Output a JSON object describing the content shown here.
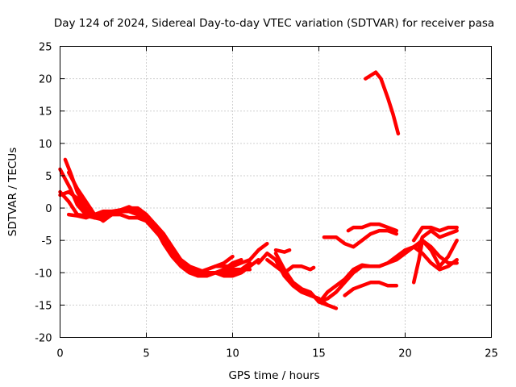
{
  "chart_data": {
    "type": "line",
    "title": "Day 124 of 2024, Sidereal Day-to-day VTEC variation (SDTVAR) for receiver pasa",
    "xlabel": "GPS time / hours",
    "ylabel": "SDTVAR / TECUs",
    "xlim": [
      0,
      25
    ],
    "ylim": [
      -20,
      25
    ],
    "xticks": [
      "0",
      "5",
      "10",
      "15",
      "20",
      "25"
    ],
    "yticks": [
      "-20",
      "-15",
      "-10",
      "-5",
      "0",
      "5",
      "10",
      "15",
      "20",
      "25"
    ],
    "grid": true,
    "color": "#ff0000",
    "series": [
      {
        "name": "trace-1",
        "x": [
          0.0,
          0.3,
          0.6,
          1.0,
          1.5,
          2.0,
          2.5,
          3.0,
          3.5,
          4.0,
          4.5,
          5.0,
          5.5,
          6.0,
          6.5,
          7.0,
          7.5,
          8.0,
          8.5,
          9.0,
          9.5,
          10.0,
          10.5,
          11.0,
          11.5,
          12.0
        ],
        "y": [
          6.0,
          4.5,
          3.0,
          0.5,
          -1.0,
          -1.5,
          -0.8,
          -0.6,
          -0.3,
          0.2,
          -0.5,
          -1.5,
          -2.5,
          -4.5,
          -6.5,
          -8.5,
          -9.5,
          -10.0,
          -9.5,
          -9.0,
          -9.0,
          -9.0,
          -8.5,
          -8.0,
          -6.5,
          -5.5
        ]
      },
      {
        "name": "trace-2",
        "x": [
          0.3,
          0.6,
          1.0,
          1.5,
          2.0,
          2.5,
          3.0,
          3.5,
          4.0,
          4.5,
          5.0,
          5.5,
          6.0,
          6.5,
          7.0,
          7.5,
          8.0,
          8.5,
          9.0,
          9.5,
          10.0,
          10.5,
          11.0,
          11.5
        ],
        "y": [
          7.5,
          5.5,
          2.5,
          0.0,
          -1.0,
          -1.5,
          -1.0,
          -0.5,
          -0.5,
          -0.5,
          -1.5,
          -3.0,
          -5.5,
          -7.5,
          -9.0,
          -10.0,
          -10.5,
          -10.0,
          -10.0,
          -10.5,
          -10.5,
          -10.0,
          -9.0,
          -8.0
        ]
      },
      {
        "name": "trace-3",
        "x": [
          0.0,
          0.5,
          1.0,
          1.5,
          2.0,
          2.5,
          3.0,
          3.5,
          4.0,
          4.5,
          5.0,
          5.5,
          6.0,
          6.5,
          7.0,
          7.5,
          8.0,
          8.5,
          9.0,
          9.5,
          10.0
        ],
        "y": [
          2.0,
          2.5,
          1.5,
          -0.5,
          -1.5,
          -1.8,
          -1.0,
          -1.0,
          -1.5,
          -1.5,
          -2.0,
          -3.5,
          -5.0,
          -7.0,
          -8.5,
          -9.5,
          -10.0,
          -9.5,
          -9.0,
          -8.5,
          -7.5
        ]
      },
      {
        "name": "trace-4",
        "x": [
          0.0,
          0.5,
          1.0,
          1.5,
          2.0,
          2.5,
          3.0,
          3.5,
          4.0,
          4.5,
          5.0,
          5.5,
          6.0,
          6.5,
          7.0,
          7.5,
          8.0,
          8.5,
          9.0,
          9.5,
          10.0,
          10.5,
          11.0
        ],
        "y": [
          2.5,
          1.0,
          -1.0,
          -1.2,
          -1.5,
          -1.2,
          -0.8,
          -0.5,
          0.0,
          0.0,
          -1.0,
          -2.5,
          -4.0,
          -6.5,
          -8.5,
          -9.8,
          -10.5,
          -10.5,
          -10.0,
          -9.5,
          -9.5,
          -9.5,
          -8.5
        ]
      },
      {
        "name": "trace-5",
        "x": [
          0.5,
          1.0,
          1.5,
          2.0,
          2.5,
          3.0,
          3.5,
          4.0,
          4.5,
          5.0,
          5.5,
          6.0,
          6.5,
          7.0,
          7.5,
          8.0,
          8.5,
          9.0,
          9.5,
          10.0,
          10.5
        ],
        "y": [
          5.5,
          3.0,
          1.0,
          -1.0,
          -2.0,
          -1.0,
          -0.5,
          -0.5,
          -1.0,
          -2.0,
          -3.5,
          -5.0,
          -6.5,
          -8.0,
          -9.0,
          -9.5,
          -10.0,
          -10.0,
          -9.5,
          -8.5,
          -8.0
        ]
      },
      {
        "name": "trace-6",
        "x": [
          0.5,
          1.0,
          1.5,
          2.0,
          2.5,
          3.0,
          3.5,
          4.0,
          4.5,
          5.0,
          5.5,
          6.0,
          6.5,
          7.0,
          7.5,
          8.0,
          8.5,
          9.0,
          9.5,
          10.0,
          10.5,
          11.0
        ],
        "y": [
          -1.0,
          -1.2,
          -1.5,
          -1.0,
          -0.5,
          -0.5,
          -0.3,
          -0.5,
          -1.0,
          -1.5,
          -2.5,
          -4.0,
          -6.0,
          -8.0,
          -9.0,
          -10.0,
          -10.5,
          -10.0,
          -10.0,
          -10.0,
          -9.5,
          -9.5
        ]
      },
      {
        "name": "trace-7",
        "x": [
          11.5,
          12.0,
          12.5,
          13.0,
          13.5,
          14.0,
          14.5,
          15.0,
          15.5
        ],
        "y": [
          -8.5,
          -7.0,
          -8.0,
          -10.5,
          -12.0,
          -13.0,
          -13.5,
          -14.0,
          -15.0
        ]
      },
      {
        "name": "trace-8",
        "x": [
          12.0,
          12.5,
          13.0,
          13.5,
          14.0,
          14.5,
          15.0
        ],
        "y": [
          -8.0,
          -9.0,
          -10.0,
          -11.5,
          -12.5,
          -13.5,
          -14.0
        ]
      },
      {
        "name": "trace-9",
        "x": [
          12.5,
          13.0,
          13.5,
          14.0,
          14.5,
          15.0,
          15.5,
          16.0
        ],
        "y": [
          -7.0,
          -9.5,
          -11.5,
          -12.5,
          -13.0,
          -14.5,
          -15.0,
          -15.5
        ]
      },
      {
        "name": "trace-10",
        "x": [
          12.5,
          13.0,
          13.3
        ],
        "y": [
          -6.5,
          -6.8,
          -6.5
        ]
      },
      {
        "name": "trace-11",
        "x": [
          13.0,
          13.5,
          14.0,
          14.5,
          14.7
        ],
        "y": [
          -10.0,
          -9.0,
          -9.0,
          -9.5,
          -9.2
        ]
      },
      {
        "name": "trace-12",
        "x": [
          15.0,
          15.5,
          16.0,
          16.5,
          17.0,
          17.5,
          18.0,
          18.5,
          19.0,
          19.5,
          20.0,
          20.5,
          21.0,
          21.5,
          22.0,
          22.5,
          23.0
        ],
        "y": [
          -14.5,
          -14.0,
          -13.0,
          -11.5,
          -10.0,
          -9.0,
          -9.0,
          -9.0,
          -8.5,
          -8.0,
          -7.0,
          -6.0,
          -5.0,
          -6.0,
          -7.5,
          -8.5,
          -8.5
        ]
      },
      {
        "name": "trace-13",
        "x": [
          15.2,
          15.5,
          16.0,
          16.5,
          17.0,
          17.5,
          18.0,
          18.5,
          19.0,
          19.5,
          20.0,
          20.5,
          21.0,
          21.5,
          22.0,
          22.5,
          23.0
        ],
        "y": [
          -14.0,
          -13.0,
          -12.0,
          -11.0,
          -9.5,
          -8.8,
          -9.0,
          -9.0,
          -8.5,
          -7.5,
          -6.5,
          -6.0,
          -7.0,
          -8.5,
          -9.5,
          -9.0,
          -8.0
        ]
      },
      {
        "name": "trace-14",
        "x": [
          15.3,
          15.8,
          16.0,
          16.5,
          17.0,
          17.5,
          18.0,
          18.5,
          19.0,
          19.5
        ],
        "y": [
          -4.5,
          -4.5,
          -4.5,
          -5.5,
          -6.0,
          -5.0,
          -4.0,
          -3.5,
          -3.5,
          -4.0
        ]
      },
      {
        "name": "trace-15",
        "x": [
          16.7,
          17.0,
          17.5,
          18.0,
          18.5,
          19.0,
          19.5
        ],
        "y": [
          -3.5,
          -3.0,
          -3.0,
          -2.5,
          -2.5,
          -3.0,
          -3.5
        ]
      },
      {
        "name": "trace-16",
        "x": [
          16.5,
          17.0,
          17.5,
          18.0,
          18.5,
          19.0,
          19.5
        ],
        "y": [
          -13.5,
          -12.5,
          -12.0,
          -11.5,
          -11.5,
          -12.0,
          -12.0
        ]
      },
      {
        "name": "trace-17",
        "x": [
          17.7,
          18.0,
          18.3,
          18.6,
          19.0,
          19.3,
          19.6
        ],
        "y": [
          20.0,
          20.5,
          21.0,
          20.0,
          17.0,
          14.5,
          11.5
        ]
      },
      {
        "name": "trace-18",
        "x": [
          20.5,
          20.8,
          21.0,
          21.5,
          22.0,
          22.5,
          23.0
        ],
        "y": [
          -11.5,
          -8.0,
          -5.0,
          -6.5,
          -9.0,
          -7.5,
          -5.0
        ]
      },
      {
        "name": "trace-19",
        "x": [
          20.8,
          21.0,
          21.5,
          22.0,
          22.5,
          23.0
        ],
        "y": [
          -6.0,
          -4.5,
          -3.5,
          -4.5,
          -4.0,
          -3.5
        ]
      },
      {
        "name": "trace-20",
        "x": [
          20.5,
          21.0,
          21.5,
          22.0,
          22.5,
          23.0
        ],
        "y": [
          -5.0,
          -3.0,
          -3.0,
          -3.5,
          -3.0,
          -3.0
        ]
      }
    ]
  }
}
